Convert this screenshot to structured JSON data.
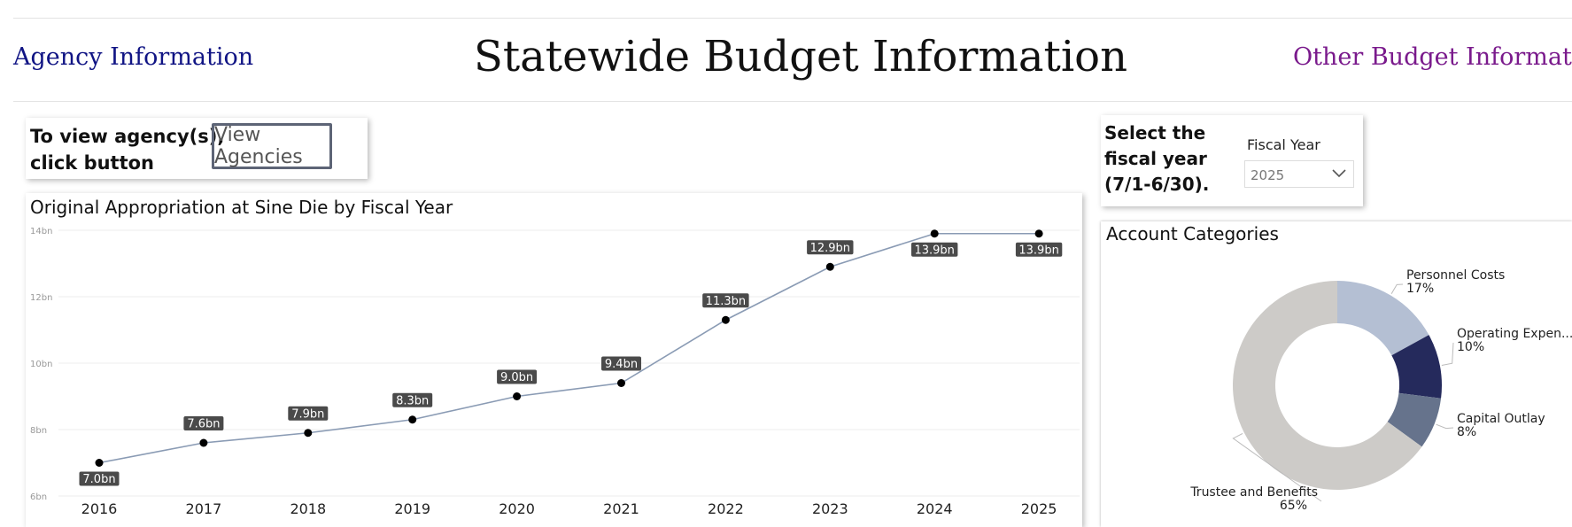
{
  "nav": {
    "agency_link": "Agency Information",
    "title": "Statewide Budget Information",
    "other_link": "Other Budget Informatio"
  },
  "view_agencies": {
    "instruction_line1": "To view agency(s),",
    "instruction_line2": "click button",
    "button_label": "View Agencies"
  },
  "fiscal_year": {
    "instruction_line1": "Select the",
    "instruction_line2": "fiscal year",
    "instruction_line3": "(7/1-6/30).",
    "label": "Fiscal Year",
    "selected": "2025",
    "chevron_icon": "chevron-down-icon"
  },
  "account_categories": {
    "title": "Account Categories"
  },
  "colors": {
    "nav_link": "#101484",
    "other_link": "#7a1a8c",
    "line": "#8a9bb4",
    "label_bg": "#4a4a4a"
  },
  "chart_data": [
    {
      "type": "line",
      "title": "Original Appropriation at Sine Die by Fiscal Year",
      "x": [
        "2016",
        "2017",
        "2018",
        "2019",
        "2020",
        "2021",
        "2022",
        "2023",
        "2024",
        "2025"
      ],
      "series": [
        {
          "values": [
            7.0,
            7.6,
            7.9,
            8.3,
            9.0,
            9.4,
            11.3,
            12.9,
            13.9,
            13.9
          ],
          "labels": [
            "7.0bn",
            "7.6bn",
            "7.9bn",
            "8.3bn",
            "9.0bn",
            "9.4bn",
            "11.3bn",
            "12.9bn",
            "13.9bn",
            "13.9bn"
          ]
        }
      ],
      "yticks": [
        "6bn",
        "8bn",
        "10bn",
        "12bn",
        "14bn"
      ],
      "ylim": [
        6,
        14
      ],
      "grid": true,
      "legend": "none"
    },
    {
      "type": "pie",
      "title": "Account Categories",
      "donut": true,
      "slices": [
        {
          "name": "Personnel Costs",
          "value": 17,
          "label": "17%",
          "color": "#b4bfd3"
        },
        {
          "name": "Operating Expen...",
          "value": 10,
          "label": "10%",
          "color": "#252a5c"
        },
        {
          "name": "Capital Outlay",
          "value": 8,
          "label": "8%",
          "color": "#66738c"
        },
        {
          "name": "Trustee and Benefits",
          "value": 65,
          "label": "65%",
          "color": "#cdcbc8"
        }
      ]
    }
  ]
}
